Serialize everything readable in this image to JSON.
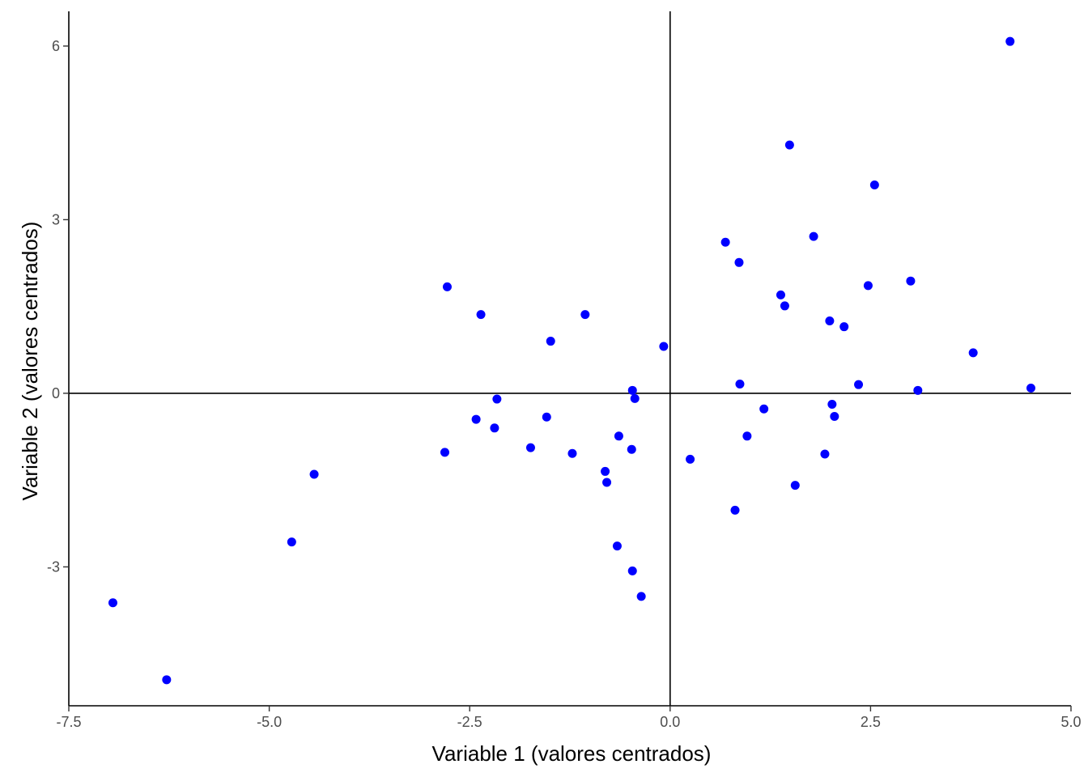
{
  "chart_data": {
    "type": "scatter",
    "title": "",
    "xlabel": "Variable 1 (valores centrados)",
    "ylabel": "Variable 2 (valores centrados)",
    "xlim": [
      -7.5,
      5.0
    ],
    "ylim": [
      -5.4,
      6.6
    ],
    "x_ticks": [
      -7.5,
      -5.0,
      -2.5,
      0.0,
      2.5,
      5.0
    ],
    "x_tick_labels": [
      "-7.5",
      "-5.0",
      "-2.5",
      "0.0",
      "2.5",
      "5.0"
    ],
    "y_ticks": [
      -3,
      0,
      3,
      6
    ],
    "y_tick_labels": [
      "-3",
      "0",
      "3",
      "6"
    ],
    "grid": false,
    "reference_lines": {
      "x": 0,
      "y": 0
    },
    "point_color": "#0000ff",
    "series": [
      {
        "points": [
          [
            -6.95,
            -3.62
          ],
          [
            -6.28,
            -4.95
          ],
          [
            -4.72,
            -2.57
          ],
          [
            -4.44,
            -1.4
          ],
          [
            -2.78,
            1.84
          ],
          [
            -2.81,
            -1.02
          ],
          [
            -2.42,
            -0.45
          ],
          [
            -2.36,
            1.36
          ],
          [
            -2.19,
            -0.6
          ],
          [
            -2.16,
            -0.1
          ],
          [
            -1.74,
            -0.94
          ],
          [
            -1.54,
            -0.41
          ],
          [
            -1.49,
            0.9
          ],
          [
            -1.22,
            -1.04
          ],
          [
            -1.06,
            1.36
          ],
          [
            -0.81,
            -1.35
          ],
          [
            -0.79,
            -1.54
          ],
          [
            -0.64,
            -0.74
          ],
          [
            -0.66,
            -2.64
          ],
          [
            -0.48,
            -0.97
          ],
          [
            -0.47,
            0.05
          ],
          [
            -0.44,
            -0.09
          ],
          [
            -0.47,
            -3.07
          ],
          [
            -0.36,
            -3.51
          ],
          [
            -0.08,
            0.81
          ],
          [
            0.25,
            -1.14
          ],
          [
            0.69,
            2.61
          ],
          [
            0.81,
            -2.02
          ],
          [
            0.86,
            2.26
          ],
          [
            0.87,
            0.16
          ],
          [
            0.96,
            -0.74
          ],
          [
            1.17,
            -0.27
          ],
          [
            1.38,
            1.7
          ],
          [
            1.43,
            1.51
          ],
          [
            1.49,
            4.29
          ],
          [
            1.56,
            -1.59
          ],
          [
            1.79,
            2.71
          ],
          [
            1.93,
            -1.05
          ],
          [
            1.99,
            1.25
          ],
          [
            2.02,
            -0.19
          ],
          [
            2.05,
            -0.4
          ],
          [
            2.17,
            1.15
          ],
          [
            2.35,
            0.15
          ],
          [
            2.47,
            1.86
          ],
          [
            2.55,
            3.6
          ],
          [
            3.0,
            1.94
          ],
          [
            3.09,
            0.05
          ],
          [
            3.78,
            0.7
          ],
          [
            4.24,
            6.08
          ],
          [
            4.5,
            0.09
          ]
        ]
      }
    ]
  }
}
